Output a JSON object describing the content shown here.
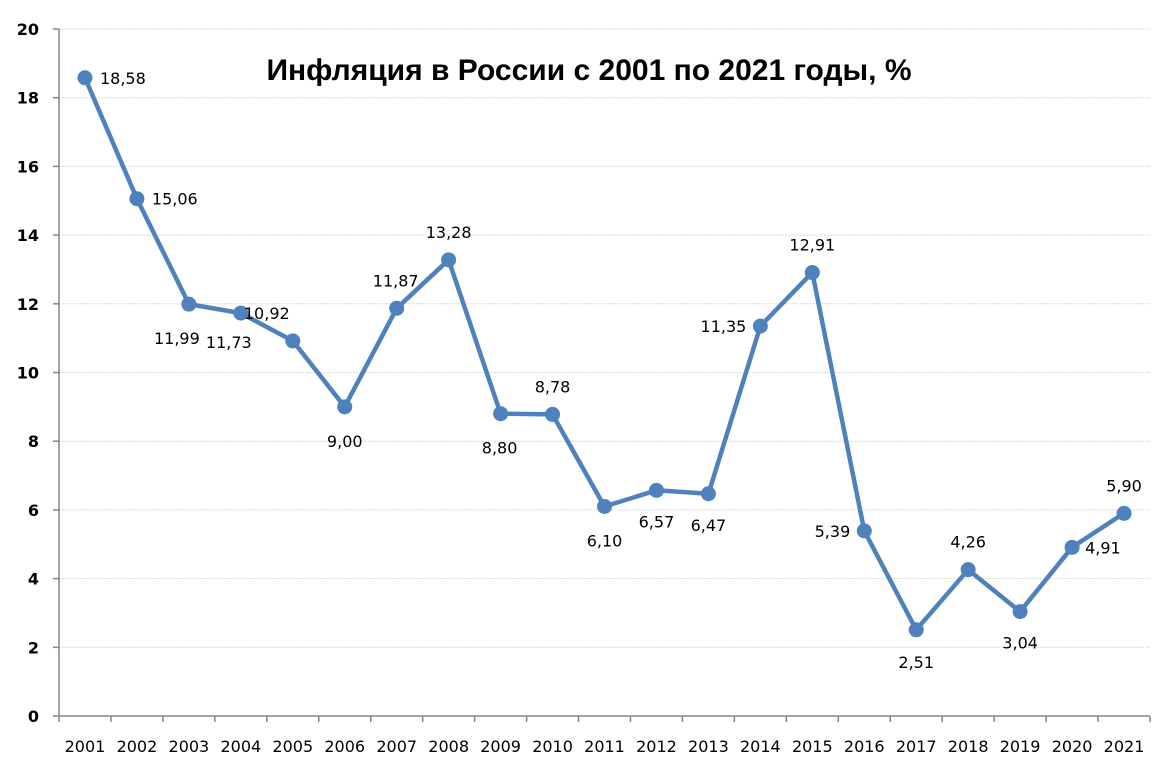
{
  "chart_data": {
    "type": "line",
    "title": "Инфляция в России с 2001 по 2021 годы, %",
    "xlabel": "",
    "ylabel": "",
    "categories": [
      "2001",
      "2002",
      "2003",
      "2004",
      "2005",
      "2006",
      "2007",
      "2008",
      "2009",
      "2010",
      "2011",
      "2012",
      "2013",
      "2014",
      "2015",
      "2016",
      "2017",
      "2018",
      "2019",
      "2020",
      "2021"
    ],
    "series": [
      {
        "name": "Инфляция, %",
        "color": "#4F81BD",
        "values": [
          18.58,
          15.06,
          11.99,
          11.73,
          10.92,
          9.0,
          11.87,
          13.28,
          8.8,
          8.78,
          6.1,
          6.57,
          6.47,
          11.35,
          12.91,
          5.39,
          2.51,
          4.26,
          3.04,
          4.91,
          5.9
        ],
        "labels": [
          "18,58",
          "15,06",
          "11,99",
          "11,73",
          "10,92",
          "9,00",
          "11,87",
          "13,28",
          "8,80",
          "8,78",
          "6,10",
          "6,57",
          "6,47",
          "11,35",
          "12,91",
          "5,39",
          "2,51",
          "4,26",
          "3,04",
          "4,91",
          "5,90"
        ]
      }
    ],
    "ylim": [
      0,
      20
    ],
    "yticks": [
      "0",
      "2",
      "4",
      "6",
      "8",
      "10",
      "12",
      "14",
      "16",
      "18",
      "20"
    ],
    "grid": true,
    "legend": "none"
  }
}
